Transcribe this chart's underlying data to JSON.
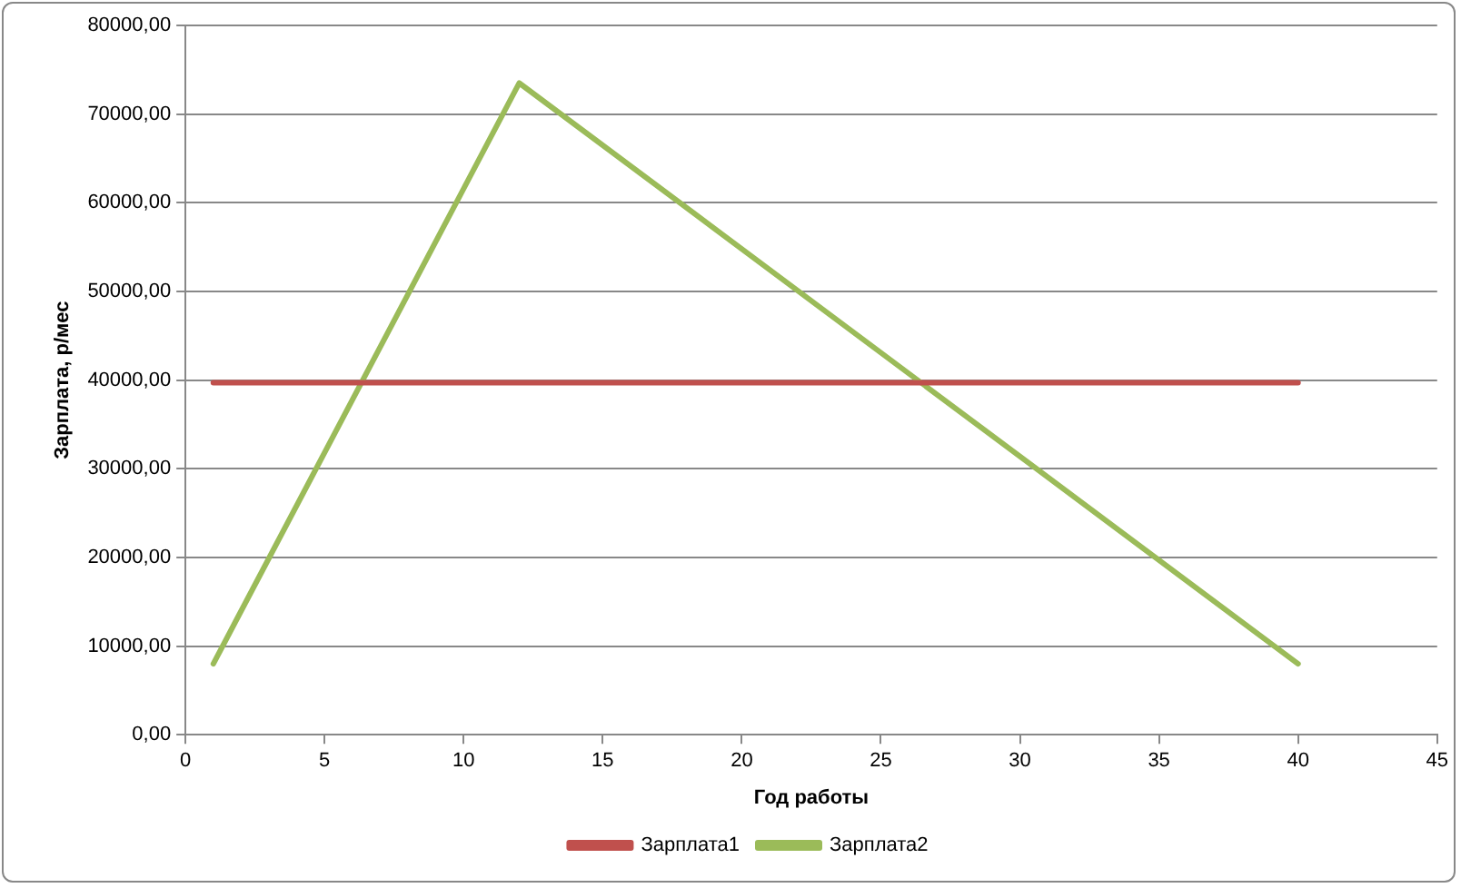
{
  "chart_data": {
    "type": "line",
    "xlabel": "Год работы",
    "ylabel": "Зарплата, р/мес",
    "xlim": [
      0,
      45
    ],
    "xticks": [
      0,
      5,
      10,
      15,
      20,
      25,
      30,
      35,
      40,
      45
    ],
    "ylim": [
      0,
      80000
    ],
    "yticks": [
      {
        "value": 0,
        "label": "0,00"
      },
      {
        "value": 10000,
        "label": "10000,00"
      },
      {
        "value": 20000,
        "label": "20000,00"
      },
      {
        "value": 30000,
        "label": "30000,00"
      },
      {
        "value": 40000,
        "label": "40000,00"
      },
      {
        "value": 50000,
        "label": "50000,00"
      },
      {
        "value": 60000,
        "label": "60000,00"
      },
      {
        "value": 70000,
        "label": "70000,00"
      },
      {
        "value": 80000,
        "label": "80000,00"
      }
    ],
    "grid": "y",
    "legend": "bottom",
    "marker": "none",
    "line_style": "solid",
    "series": [
      {
        "name": "Зарплата1",
        "color": "#c0504d",
        "x": [
          1,
          40
        ],
        "values": [
          39700,
          39700
        ]
      },
      {
        "name": "Зарплата2",
        "color": "#9bbb59",
        "x": [
          1,
          12,
          40
        ],
        "values": [
          8000,
          73500,
          8000
        ]
      }
    ]
  }
}
